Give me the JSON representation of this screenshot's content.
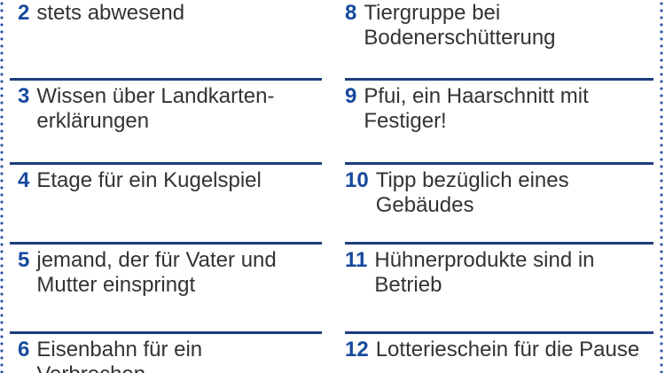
{
  "colors": {
    "bg": "#ffffff",
    "number": "#17499d",
    "text": "#333333",
    "divider": "#1e3d7d",
    "dots": "#2b54a4"
  },
  "clues": {
    "left": [
      {
        "number": "2",
        "text": "stets abwesend"
      },
      {
        "number": "3",
        "text": "Wissen über Landkarten-\nerklärungen"
      },
      {
        "number": "4",
        "text": "Etage für ein Kugelspiel"
      },
      {
        "number": "5",
        "text": "jemand, der für Vater und\nMutter einspringt"
      },
      {
        "number": "6",
        "text": "Eisenbahn für ein\nVerbrechen"
      }
    ],
    "right": [
      {
        "number": "8",
        "text": "Tiergruppe bei\nBodenerschütterung"
      },
      {
        "number": "9",
        "text": "Pfui, ein Haarschnitt mit\nFestiger!"
      },
      {
        "number": "10",
        "text": "Tipp bezüglich eines\nGebäudes"
      },
      {
        "number": "11",
        "text": "Hühnerprodukte sind in\nBetrieb"
      },
      {
        "number": "12",
        "text": "Lotterieschein für die Pause"
      }
    ]
  }
}
